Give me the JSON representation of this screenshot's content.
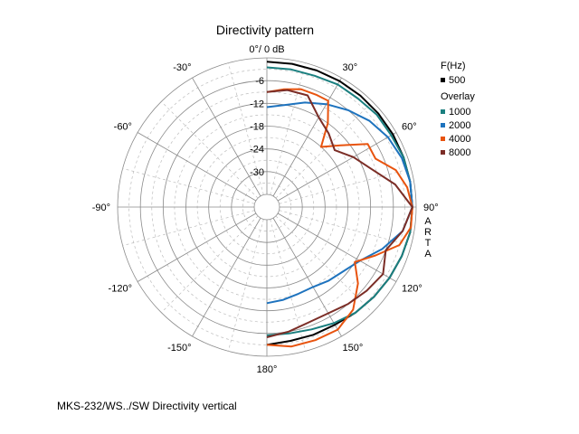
{
  "chart_data": {
    "type": "polar",
    "title": "Directivity pattern",
    "top_label": "0°/ 0 dB",
    "side_label": "A R T A",
    "r_range_db": [
      -36,
      0
    ],
    "radial_ticks": [
      "-6",
      "-12",
      "-18",
      "-24",
      "-30"
    ],
    "angle_labels": [
      {
        "angle": 30,
        "text": "30°"
      },
      {
        "angle": 60,
        "text": "60°"
      },
      {
        "angle": 90,
        "text": "90°"
      },
      {
        "angle": 120,
        "text": "120°"
      },
      {
        "angle": 150,
        "text": "150°"
      },
      {
        "angle": 180,
        "text": "180°"
      },
      {
        "angle": -150,
        "text": "-150°"
      },
      {
        "angle": -120,
        "text": "-120°"
      },
      {
        "angle": -90,
        "text": "-90°"
      },
      {
        "angle": -60,
        "text": "-60°"
      },
      {
        "angle": -30,
        "text": "-30°"
      }
    ],
    "legend_title": "F(Hz)",
    "overlay_title": "Overlay",
    "series": [
      {
        "name": "500",
        "color": "#000000",
        "angles": [
          0,
          10,
          20,
          30,
          40,
          50,
          60,
          70,
          80,
          90,
          100,
          110,
          120,
          130,
          140,
          150,
          160,
          170,
          180
        ],
        "db": [
          -1,
          -1,
          -1,
          -1,
          -1,
          -1,
          -1,
          -1,
          -1,
          -1,
          -1,
          -1.5,
          -2,
          -2.5,
          -3,
          -3.5,
          -3.5,
          -3.5,
          -3
        ]
      },
      {
        "name": "1000",
        "color": "#1a7f7f",
        "angles": [
          0,
          10,
          20,
          30,
          40,
          50,
          60,
          70,
          80,
          90,
          100,
          110,
          120,
          130,
          140,
          150,
          160,
          170,
          180
        ],
        "db": [
          -2.5,
          -2.5,
          -2.5,
          -2,
          -2,
          -1.5,
          -1.5,
          -1,
          -1,
          -1,
          -1,
          -1.5,
          -2,
          -2.5,
          -3,
          -4,
          -5,
          -5.5,
          -5.5
        ]
      },
      {
        "name": "2000",
        "color": "#1e73be",
        "angles": [
          0,
          10,
          20,
          30,
          40,
          50,
          60,
          70,
          80,
          90,
          100,
          110,
          120,
          130,
          140,
          150,
          160,
          170,
          180
        ],
        "db": [
          -13,
          -12,
          -10,
          -8,
          -6,
          -4,
          -2.5,
          -1.5,
          -1,
          -1,
          -3,
          -7,
          -11,
          -13,
          -14,
          -15,
          -15,
          -14.5,
          -14
        ]
      },
      {
        "name": "4000",
        "color": "#e8530e",
        "angles": [
          0,
          8,
          16,
          24,
          30,
          36,
          42,
          50,
          58,
          66,
          74,
          82,
          90,
          98,
          106,
          114,
          122,
          130,
          140,
          150,
          160,
          170,
          180
        ],
        "db": [
          -9,
          -8,
          -7,
          -7,
          -7,
          -12,
          -18,
          -14,
          -8,
          -8,
          -4,
          -2,
          -1,
          -1,
          -3,
          -8,
          -12,
          -8,
          -4,
          -2,
          -2,
          -2,
          -3
        ]
      },
      {
        "name": "8000",
        "color": "#7b2d26",
        "angles": [
          0,
          10,
          20,
          30,
          40,
          50,
          60,
          70,
          80,
          90,
          100,
          110,
          120,
          130,
          140,
          150,
          160,
          170,
          180
        ],
        "db": [
          -9,
          -8,
          -8,
          -12,
          -14,
          -16,
          -13,
          -10,
          -5,
          -1,
          -3,
          -6,
          -4,
          -5,
          -6,
          -7,
          -7,
          -6,
          -5
        ]
      }
    ]
  },
  "caption": "MKS-232/WS../SW  Directivity vertical"
}
